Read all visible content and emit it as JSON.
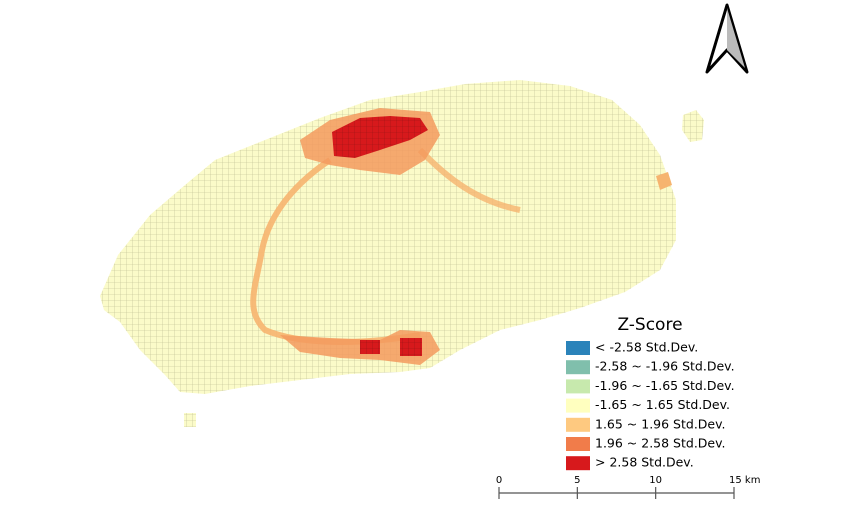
{
  "legend": {
    "title": "Z-Score",
    "items": [
      {
        "label": "< -2.58 Std.Dev.",
        "color": "#2b83ba"
      },
      {
        "label": "-2.58 ~ -1.96 Std.Dev.",
        "color": "#80bfac"
      },
      {
        "label": "-1.96 ~ -1.65 Std.Dev.",
        "color": "#c7e9ad"
      },
      {
        "label": "-1.65 ~ 1.65 Std.Dev.",
        "color": "#ffffbf"
      },
      {
        "label": "1.65 ~ 1.96 Std.Dev.",
        "color": "#fec980"
      },
      {
        "label": "1.96 ~ 2.58 Std.Dev.",
        "color": "#f17c4a"
      },
      {
        "label": "> 2.58 Std.Dev.",
        "color": "#d7191c"
      }
    ]
  },
  "scale_bar": {
    "labels": [
      "0",
      "5",
      "10",
      "15 km"
    ]
  }
}
